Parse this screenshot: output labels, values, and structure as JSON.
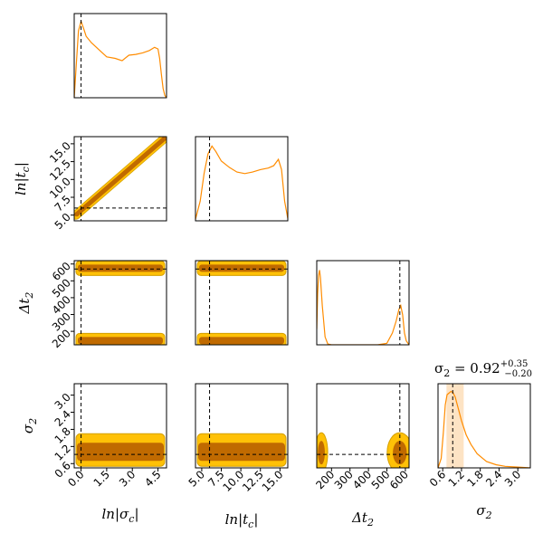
{
  "chart_data": {
    "type": "corner",
    "parameters": [
      {
        "symbol": "ln|σ_c|",
        "axis_label": "ln|σc|",
        "range": [
          -0.4,
          5.0
        ],
        "ticks": [
          0.0,
          1.5,
          3.0,
          4.5
        ],
        "tick_labels": [
          "0.0",
          "1.5",
          "3.0",
          "4.5"
        ],
        "truth": 0.0
      },
      {
        "symbol": "ln|t_c|",
        "axis_label": "ln|tc|",
        "range": [
          4.2,
          16.0
        ],
        "ticks": [
          5.0,
          7.5,
          10.0,
          12.5,
          15.0
        ],
        "tick_labels": [
          "5.0",
          "7.5",
          "10.0",
          "12.5",
          "15.0"
        ],
        "truth": 6.0
      },
      {
        "symbol": "Δt_2",
        "axis_label": "Δt2",
        "range": [
          120,
          620
        ],
        "ticks": [
          200,
          300,
          400,
          500,
          600
        ],
        "tick_labels": [
          "200",
          "300",
          "400",
          "500",
          "600"
        ],
        "truth": 570
      },
      {
        "symbol": "σ_2",
        "axis_label": "σ2",
        "range": [
          0.45,
          3.4
        ],
        "ticks": [
          0.6,
          1.2,
          1.8,
          2.4,
          3.0
        ],
        "tick_labels": [
          "0.6",
          "1.2",
          "1.8",
          "2.4",
          "3.0"
        ],
        "truth": 0.92
      }
    ],
    "marginals": [
      {
        "param": 0,
        "x": [
          -0.4,
          -0.3,
          -0.15,
          0.0,
          0.15,
          0.3,
          0.6,
          1.0,
          1.5,
          2.0,
          2.4,
          2.8,
          3.2,
          3.6,
          4.0,
          4.3,
          4.5,
          4.6,
          4.7,
          4.8,
          4.9,
          5.0
        ],
        "y": [
          0.0,
          0.35,
          0.85,
          0.97,
          0.88,
          0.78,
          0.7,
          0.62,
          0.52,
          0.5,
          0.47,
          0.54,
          0.55,
          0.57,
          0.6,
          0.64,
          0.62,
          0.5,
          0.3,
          0.12,
          0.03,
          0.0
        ]
      },
      {
        "param": 1,
        "x": [
          4.2,
          4.8,
          5.3,
          5.8,
          6.3,
          6.8,
          7.5,
          8.5,
          9.5,
          10.5,
          11.5,
          12.5,
          13.5,
          14.2,
          14.8,
          15.2,
          15.6,
          16.0
        ],
        "y": [
          0.02,
          0.25,
          0.6,
          0.85,
          0.95,
          0.88,
          0.76,
          0.68,
          0.62,
          0.6,
          0.62,
          0.65,
          0.67,
          0.7,
          0.78,
          0.65,
          0.25,
          0.03
        ]
      },
      {
        "param": 2,
        "x": [
          120,
          125,
          130,
          135,
          140,
          150,
          165,
          180,
          200,
          300,
          450,
          500,
          530,
          550,
          565,
          575,
          585,
          595,
          605,
          620
        ],
        "y": [
          0.2,
          0.65,
          0.88,
          0.95,
          0.85,
          0.5,
          0.1,
          0.01,
          0.0,
          0.0,
          0.0,
          0.02,
          0.15,
          0.3,
          0.45,
          0.5,
          0.38,
          0.15,
          0.05,
          0.0
        ]
      },
      {
        "param": 3,
        "x": [
          0.45,
          0.55,
          0.62,
          0.68,
          0.74,
          0.8,
          0.86,
          0.92,
          1.0,
          1.1,
          1.2,
          1.35,
          1.5,
          1.7,
          2.0,
          2.3,
          2.6,
          3.0,
          3.4
        ],
        "y": [
          0.0,
          0.12,
          0.45,
          0.8,
          0.93,
          0.95,
          0.97,
          0.96,
          0.9,
          0.75,
          0.6,
          0.42,
          0.3,
          0.18,
          0.08,
          0.04,
          0.02,
          0.01,
          0.0
        ]
      }
    ],
    "contours_2d": [
      {
        "x_param": 0,
        "y_param": 1,
        "shape": "diagonal-band",
        "line": [
          [
            -0.3,
            5.0
          ],
          [
            4.9,
            15.8
          ]
        ]
      },
      {
        "x_param": 0,
        "y_param": 2,
        "shape": "horizontal-bands",
        "bands": [
          145,
          575
        ]
      },
      {
        "x_param": 1,
        "y_param": 2,
        "shape": "horizontal-bands",
        "bands": [
          145,
          575
        ]
      },
      {
        "x_param": 0,
        "y_param": 3,
        "shape": "horizontal-band",
        "center": 0.95
      },
      {
        "x_param": 1,
        "y_param": 3,
        "shape": "horizontal-band",
        "center": 0.95
      },
      {
        "x_param": 2,
        "y_param": 3,
        "shape": "two-blobs",
        "centers": [
          145,
          570
        ]
      }
    ],
    "annotation": {
      "param": 3,
      "median": 0.92,
      "upper_err": 0.35,
      "lower_err": 0.2
    },
    "colors": {
      "line": "#ff8c00",
      "outer_fill": "#ffc107",
      "inner_fill": "#c06a00",
      "outer_edge": "#d4a000",
      "shade": "#fde3c4",
      "truth": "#000000"
    }
  }
}
